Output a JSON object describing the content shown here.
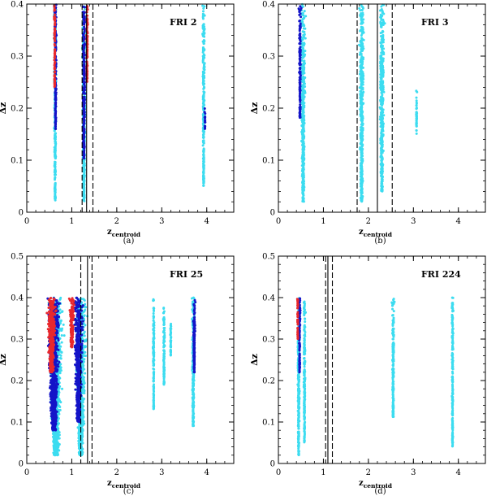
{
  "figure": {
    "colors": {
      "red": "#e8282d",
      "blue": "#1414c8",
      "cyan": "#3cdcf0",
      "axis": "#000000"
    }
  },
  "chart_data": [
    {
      "type": "scatter",
      "panel_label": "(a)",
      "title": "FRI 2",
      "xlabel": "z_centroid",
      "xlabel_main": "z",
      "xlabel_sub": "centroid",
      "ylabel": "Δz",
      "xlim": [
        0,
        4.6
      ],
      "ylim": [
        0,
        0.4
      ],
      "xticks": [
        "0",
        "1",
        "2",
        "3",
        "4"
      ],
      "yticks": [
        "0",
        "0.1",
        "0.2",
        "0.3",
        "0.4"
      ],
      "vlines": {
        "solid": [
          1.33
        ],
        "dashed": [
          1.23,
          1.47
        ]
      },
      "series": [
        {
          "name": "cyan",
          "clusters": [
            {
              "x": 0.63,
              "w": 0.08,
              "yTop": 0.4,
              "yBot": 0.02
            },
            {
              "x": 1.27,
              "w": 0.12,
              "yTop": 0.4,
              "yBot": 0.02
            },
            {
              "x": 3.93,
              "w": 0.08,
              "yTop": 0.4,
              "yBot": 0.05
            }
          ]
        },
        {
          "name": "blue",
          "clusters": [
            {
              "x": 0.64,
              "w": 0.07,
              "yTop": 0.4,
              "yBot": 0.16
            },
            {
              "x": 1.27,
              "w": 0.11,
              "yTop": 0.4,
              "yBot": 0.1
            },
            {
              "x": 3.96,
              "w": 0.03,
              "yTop": 0.2,
              "yBot": 0.16
            }
          ]
        },
        {
          "name": "red",
          "clusters": [
            {
              "x": 0.62,
              "w": 0.04,
              "yTop": 0.4,
              "yBot": 0.24
            },
            {
              "x": 1.34,
              "w": 0.05,
              "yTop": 0.4,
              "yBot": 0.25
            }
          ]
        }
      ]
    },
    {
      "type": "scatter",
      "panel_label": "(b)",
      "title": "FRI 3",
      "xlabel": "z_centroid",
      "xlabel_main": "z",
      "xlabel_sub": "centroid",
      "ylabel": "Δz",
      "xlim": [
        0,
        4.6
      ],
      "ylim": [
        0,
        0.4
      ],
      "xticks": [
        "0",
        "1",
        "2",
        "3",
        "4"
      ],
      "yticks": [
        "0",
        "0.1",
        "0.2",
        "0.3",
        "0.4"
      ],
      "vlines": {
        "solid": [
          2.2
        ],
        "dashed": [
          1.75,
          2.53
        ]
      },
      "series": [
        {
          "name": "cyan",
          "clusters": [
            {
              "x": 0.55,
              "w": 0.15,
              "yTop": 0.4,
              "yBot": 0.02
            },
            {
              "x": 1.85,
              "w": 0.16,
              "yTop": 0.4,
              "yBot": 0.02
            },
            {
              "x": 2.3,
              "w": 0.16,
              "yTop": 0.4,
              "yBot": 0.04
            },
            {
              "x": 3.07,
              "w": 0.03,
              "yTop": 0.24,
              "yBot": 0.15
            }
          ]
        },
        {
          "name": "blue",
          "clusters": [
            {
              "x": 0.48,
              "w": 0.07,
              "yTop": 0.4,
              "yBot": 0.18
            }
          ]
        },
        {
          "name": "red",
          "clusters": []
        }
      ]
    },
    {
      "type": "scatter",
      "panel_label": "(c)",
      "title": "FRI 25",
      "xlabel": "z_centroid",
      "xlabel_main": "z",
      "xlabel_sub": "centroid",
      "ylabel": "Δz",
      "xlim": [
        0,
        4.6
      ],
      "ylim": [
        0,
        0.5
      ],
      "xticks": [
        "0",
        "1",
        "2",
        "3",
        "4"
      ],
      "yticks": [
        "0",
        "0.1",
        "0.2",
        "0.3",
        "0.4",
        "0.5"
      ],
      "vlines": {
        "solid": [
          1.35
        ],
        "dashed": [
          1.2,
          1.45
        ]
      },
      "series": [
        {
          "name": "cyan",
          "clusters": [
            {
              "x": 0.65,
              "w": 0.45,
              "yTop": 0.4,
              "yBot": 0.02
            },
            {
              "x": 1.2,
              "w": 0.35,
              "yTop": 0.4,
              "yBot": 0.02
            },
            {
              "x": 2.82,
              "w": 0.05,
              "yTop": 0.4,
              "yBot": 0.13
            },
            {
              "x": 3.05,
              "w": 0.05,
              "yTop": 0.38,
              "yBot": 0.19
            },
            {
              "x": 3.2,
              "w": 0.04,
              "yTop": 0.35,
              "yBot": 0.26
            },
            {
              "x": 3.7,
              "w": 0.1,
              "yTop": 0.4,
              "yBot": 0.09
            }
          ]
        },
        {
          "name": "blue",
          "clusters": [
            {
              "x": 0.6,
              "w": 0.4,
              "yTop": 0.4,
              "yBot": 0.08
            },
            {
              "x": 1.15,
              "w": 0.3,
              "yTop": 0.4,
              "yBot": 0.1
            },
            {
              "x": 3.72,
              "w": 0.07,
              "yTop": 0.4,
              "yBot": 0.22
            }
          ]
        },
        {
          "name": "red",
          "clusters": [
            {
              "x": 0.55,
              "w": 0.3,
              "yTop": 0.4,
              "yBot": 0.22
            },
            {
              "x": 1.0,
              "w": 0.18,
              "yTop": 0.4,
              "yBot": 0.28
            }
          ]
        }
      ]
    },
    {
      "type": "scatter",
      "panel_label": "(d)",
      "title": "FRI 224",
      "xlabel": "z_centroid",
      "xlabel_main": "z",
      "xlabel_sub": "centroid",
      "ylabel": "Δz",
      "xlim": [
        0,
        4.6
      ],
      "ylim": [
        0,
        0.5
      ],
      "xticks": [
        "0",
        "1",
        "2",
        "3",
        "4"
      ],
      "yticks": [
        "0",
        "0.1",
        "0.2",
        "0.3",
        "0.4",
        "0.5"
      ],
      "vlines": {
        "solid": [
          1.1
        ],
        "dashed": [
          1.05,
          1.2
        ]
      },
      "series": [
        {
          "name": "cyan",
          "clusters": [
            {
              "x": 0.45,
              "w": 0.08,
              "yTop": 0.4,
              "yBot": 0.02
            },
            {
              "x": 0.58,
              "w": 0.06,
              "yTop": 0.4,
              "yBot": 0.05
            },
            {
              "x": 2.55,
              "w": 0.07,
              "yTop": 0.4,
              "yBot": 0.11
            },
            {
              "x": 3.87,
              "w": 0.05,
              "yTop": 0.4,
              "yBot": 0.04
            }
          ]
        },
        {
          "name": "blue",
          "clusters": [
            {
              "x": 0.47,
              "w": 0.05,
              "yTop": 0.4,
              "yBot": 0.22
            }
          ]
        },
        {
          "name": "red",
          "clusters": [
            {
              "x": 0.43,
              "w": 0.03,
              "yTop": 0.4,
              "yBot": 0.3
            }
          ]
        }
      ]
    }
  ]
}
